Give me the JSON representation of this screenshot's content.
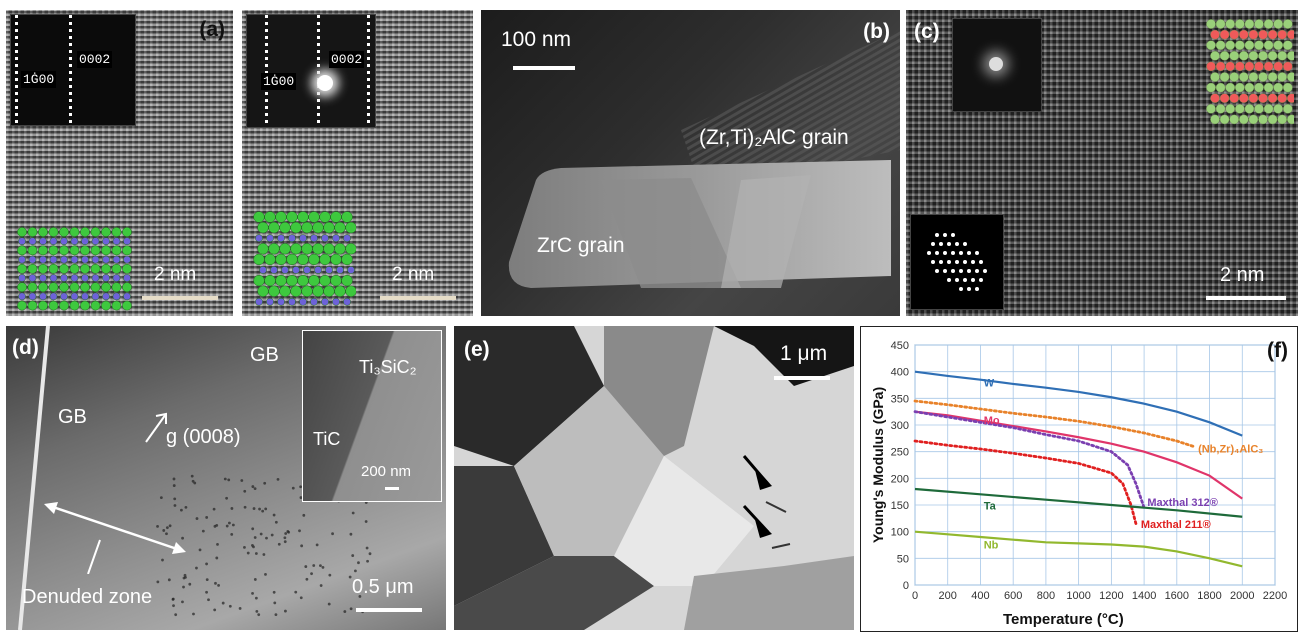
{
  "panel_a": {
    "label": "(a)",
    "diff1_spot1": "0002",
    "diff1_spot2": "1Ġ00",
    "diff2_spot1": "0002",
    "diff2_spot2": "1Ġ00",
    "scale1": "2 nm",
    "scale2": "2 nm"
  },
  "panel_b": {
    "label": "(b)",
    "scale": "100 nm",
    "grain1": "(Zr,Ti)₂AlC grain",
    "grain2": "ZrC grain"
  },
  "panel_c": {
    "label": "(c)",
    "scale": "2 nm"
  },
  "panel_d": {
    "label": "(d)",
    "gb_left": "GB",
    "gb_right": "GB",
    "gvector": "g (0008)",
    "zone": "Denuded zone",
    "scale": "0.5 μm",
    "inset_phase1": "Ti₃SiC₂",
    "inset_phase2": "TiC",
    "inset_scale": "200 nm"
  },
  "panel_e": {
    "label": "(e)",
    "scale": "1 μm"
  },
  "panel_f": {
    "label": "(f)"
  },
  "chart_data": {
    "type": "line",
    "xlabel": "Temperature (°C)",
    "ylabel": "Young's Modulus (GPa)",
    "xlim": [
      0,
      2200
    ],
    "ylim": [
      0,
      450
    ],
    "xticks": [
      0,
      200,
      400,
      600,
      800,
      1000,
      1200,
      1400,
      1600,
      1800,
      2000,
      2200
    ],
    "yticks": [
      0,
      50,
      100,
      150,
      200,
      250,
      300,
      350,
      400,
      450
    ],
    "grid": true,
    "series": [
      {
        "name": "W",
        "color": "#2f6fb5",
        "dash": "solid",
        "x": [
          0,
          200,
          400,
          600,
          800,
          1000,
          1200,
          1400,
          1600,
          1800,
          2000
        ],
        "y": [
          400,
          392,
          385,
          377,
          370,
          362,
          352,
          340,
          325,
          305,
          280
        ]
      },
      {
        "name": "(Nb,Zr)₄AlC₃",
        "color": "#e8822a",
        "dash": "dotted",
        "x": [
          0,
          200,
          400,
          600,
          800,
          1000,
          1200,
          1400,
          1600,
          1700
        ],
        "y": [
          345,
          338,
          330,
          322,
          315,
          307,
          297,
          285,
          270,
          260
        ]
      },
      {
        "name": "Mo",
        "color": "#e0356a",
        "dash": "solid",
        "x": [
          0,
          200,
          400,
          600,
          800,
          1000,
          1200,
          1400,
          1600,
          1800,
          2000
        ],
        "y": [
          325,
          318,
          308,
          298,
          288,
          277,
          265,
          250,
          230,
          205,
          162
        ]
      },
      {
        "name": "Maxthal 312®",
        "color": "#7a3fb0",
        "dash": "dotted",
        "x": [
          0,
          200,
          400,
          600,
          800,
          1000,
          1200,
          1300,
          1350,
          1400
        ],
        "y": [
          325,
          315,
          305,
          295,
          282,
          270,
          250,
          225,
          190,
          145
        ]
      },
      {
        "name": "Maxthal 211®",
        "color": "#e02020",
        "dash": "dotted",
        "x": [
          0,
          200,
          400,
          600,
          800,
          1000,
          1200,
          1270,
          1320,
          1350
        ],
        "y": [
          270,
          262,
          255,
          247,
          238,
          228,
          210,
          190,
          150,
          115
        ]
      },
      {
        "name": "Ta",
        "color": "#1e6a3a",
        "dash": "solid",
        "x": [
          0,
          400,
          800,
          1200,
          1600,
          2000
        ],
        "y": [
          180,
          170,
          160,
          150,
          140,
          128
        ]
      },
      {
        "name": "Nb",
        "color": "#92b82e",
        "dash": "solid",
        "x": [
          0,
          200,
          400,
          600,
          800,
          1000,
          1200,
          1400,
          1600,
          1800,
          2000
        ],
        "y": [
          100,
          95,
          90,
          85,
          80,
          78,
          76,
          72,
          63,
          50,
          35
        ]
      }
    ]
  }
}
